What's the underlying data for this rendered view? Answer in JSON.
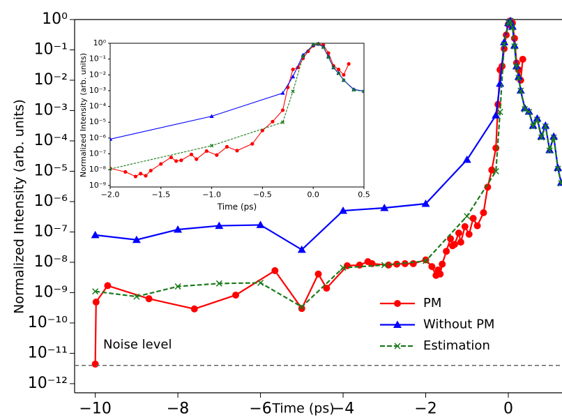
{
  "chart_data": {
    "type": "line",
    "yscale": "log",
    "xlabel": "Time (ps)",
    "ylabel": "Normalized Intensity (arb. units)",
    "xlim": [
      -10.5,
      1.3
    ],
    "ylim": [
      5e-13,
      1
    ],
    "xticks": [
      {
        "value": -10,
        "label": "−10"
      },
      {
        "value": -8,
        "label": "−8"
      },
      {
        "value": -6,
        "label": "−6"
      },
      {
        "value": -4,
        "label": "−4"
      },
      {
        "value": -2,
        "label": "−2"
      },
      0
    ],
    "yticks": [
      {
        "value": 1,
        "label": "10⁰"
      },
      {
        "value": 0.1,
        "label": "10⁻¹"
      },
      {
        "value": 0.01,
        "label": "10⁻²"
      },
      {
        "value": 0.001,
        "label": "10⁻³"
      },
      {
        "value": 0.0001,
        "label": "10⁻⁴"
      },
      {
        "value": 1e-05,
        "label": "10⁻⁵"
      },
      {
        "value": 1e-06,
        "label": "10⁻⁶"
      },
      {
        "value": 1e-07,
        "label": "10⁻⁷"
      },
      {
        "value": 1e-08,
        "label": "10⁻⁸"
      },
      {
        "value": 1e-09,
        "label": "10⁻⁹"
      },
      {
        "value": 1e-10,
        "label": "10⁻¹⁰"
      },
      {
        "value": 1e-11,
        "label": "10⁻¹¹"
      },
      {
        "value": 1e-12,
        "label": "10⁻¹²"
      }
    ],
    "legend": "lower right",
    "noise_level": {
      "value": 4e-12,
      "label": "Noise level",
      "color": "#666666"
    },
    "series": [
      {
        "name": "PM",
        "color": "#ff0000",
        "marker": "o",
        "linestyle": "solid",
        "x": [
          -10,
          -9.98,
          -9.7,
          -8.7,
          -7.6,
          -6.6,
          -5.65,
          -5.0,
          -4.6,
          -4.4,
          -3.9,
          -3.6,
          -3.4,
          -3.3,
          -2.9,
          -2.7,
          -2.5,
          -2.3,
          -2.0,
          -1.85,
          -1.75,
          -1.7,
          -1.65,
          -1.6,
          -1.5,
          -1.4,
          -1.35,
          -1.3,
          -1.2,
          -1.15,
          -1.05,
          -0.95,
          -0.85,
          -0.75,
          -0.6,
          -0.5,
          -0.4,
          -0.3,
          -0.25,
          -0.2,
          -0.15,
          -0.1,
          -0.05,
          0.0,
          0.05,
          0.1,
          0.15,
          0.2,
          0.25,
          0.3,
          0.35
        ],
        "values": [
          4.4e-12,
          4.9e-10,
          1.7e-09,
          6.3e-10,
          2.9e-10,
          8.3e-10,
          5.3e-09,
          3e-10,
          4.1e-09,
          1.4e-09,
          7.7e-09,
          8.1e-09,
          1.05e-08,
          9e-09,
          8.1e-09,
          8.7e-09,
          9e-09,
          9e-09,
          1.2e-08,
          7.2e-09,
          3.7e-09,
          5.6e-09,
          4.1e-09,
          8.7e-09,
          2.3e-08,
          6e-08,
          3.5e-08,
          3.9e-08,
          9.2e-08,
          4.6e-08,
          1.5e-07,
          8.4e-08,
          2.8e-07,
          1.6e-07,
          4.3e-07,
          3e-06,
          1.1e-05,
          5.8e-05,
          0.0016,
          0.022,
          0.029,
          0.11,
          0.31,
          0.69,
          0.9,
          0.77,
          0.24,
          0.037,
          0.022,
          0.01,
          0.049
        ]
      },
      {
        "name": "Without PM",
        "color": "#0000ff",
        "marker": "^",
        "linestyle": "solid",
        "x": [
          -10,
          -9,
          -8,
          -7,
          -6,
          -5,
          -4,
          -3,
          -2,
          -1,
          -0.3,
          -0.2,
          -0.1,
          0.0,
          0.05,
          0.1,
          0.15,
          0.2,
          0.25,
          0.3,
          0.4,
          0.5,
          0.6,
          0.7,
          0.8,
          0.9,
          1.0,
          1.1,
          1.2,
          1.28
        ],
        "values": [
          7.9e-08,
          5.5e-08,
          1.2e-07,
          1.6e-07,
          1.7e-07,
          2.6e-08,
          5e-07,
          6.2e-07,
          8.5e-07,
          2.4e-05,
          0.0007,
          0.0077,
          0.18,
          0.77,
          0.9,
          0.59,
          0.14,
          0.029,
          0.013,
          0.0046,
          0.0012,
          0.00093,
          0.00032,
          0.00055,
          0.00014,
          0.00032,
          5e-05,
          0.00014,
          1.3e-05,
          4.2e-06
        ]
      },
      {
        "name": "Estimation",
        "color": "#1a7a1a",
        "marker": "x",
        "linestyle": "dashed",
        "x": [
          -10,
          -9,
          -8,
          -7,
          -6,
          -5,
          -4,
          -3,
          -2,
          -1,
          -0.3,
          -0.2,
          -0.1,
          0.0,
          0.05,
          0.1,
          0.15,
          0.2,
          0.25,
          0.3,
          0.4,
          0.5,
          0.6,
          0.7,
          0.8,
          0.9,
          1.0,
          1.1,
          1.2,
          1.28
        ],
        "values": [
          1.1e-09,
          7.4e-10,
          1.6e-09,
          2e-09,
          2.1e-09,
          3.4e-10,
          6.6e-09,
          8.1e-09,
          1.1e-08,
          3.3e-07,
          1e-05,
          0.0009,
          0.15,
          0.8,
          0.9,
          0.55,
          0.13,
          0.028,
          0.012,
          0.0045,
          0.0011,
          0.0009,
          0.0003,
          0.0005,
          0.00013,
          0.0003,
          4.8e-05,
          0.00013,
          1.2e-05,
          4e-06
        ]
      }
    ],
    "inset": {
      "xlabel": "Time (ps)",
      "ylabel": "Normalized Intensity (arb. units)",
      "xlim": [
        -2,
        0.5
      ],
      "xticks": [
        {
          "value": -2,
          "label": "−2.0"
        },
        {
          "value": -1.5,
          "label": "−1.5"
        },
        {
          "value": -1,
          "label": "−1.0"
        },
        {
          "value": -0.5,
          "label": "−0.5"
        },
        {
          "value": 0,
          "label": "0.0"
        },
        0.5
      ],
      "ylim": [
        8e-10,
        1
      ],
      "yticks": [
        {
          "value": 1,
          "label": "10⁰"
        },
        {
          "value": 0.1,
          "label": "10⁻¹"
        },
        {
          "value": 0.01,
          "label": "10⁻²"
        },
        {
          "value": 0.001,
          "label": "10⁻³"
        },
        {
          "value": 0.0001,
          "label": "10⁻⁴"
        },
        {
          "value": 1e-05,
          "label": "10⁻⁵"
        },
        {
          "value": 1e-06,
          "label": "10⁻⁶"
        },
        {
          "value": 1e-07,
          "label": "10⁻⁷"
        },
        {
          "value": 1e-08,
          "label": "10⁻⁸"
        },
        {
          "value": 1e-09,
          "label": "10⁻⁹"
        }
      ]
    }
  }
}
